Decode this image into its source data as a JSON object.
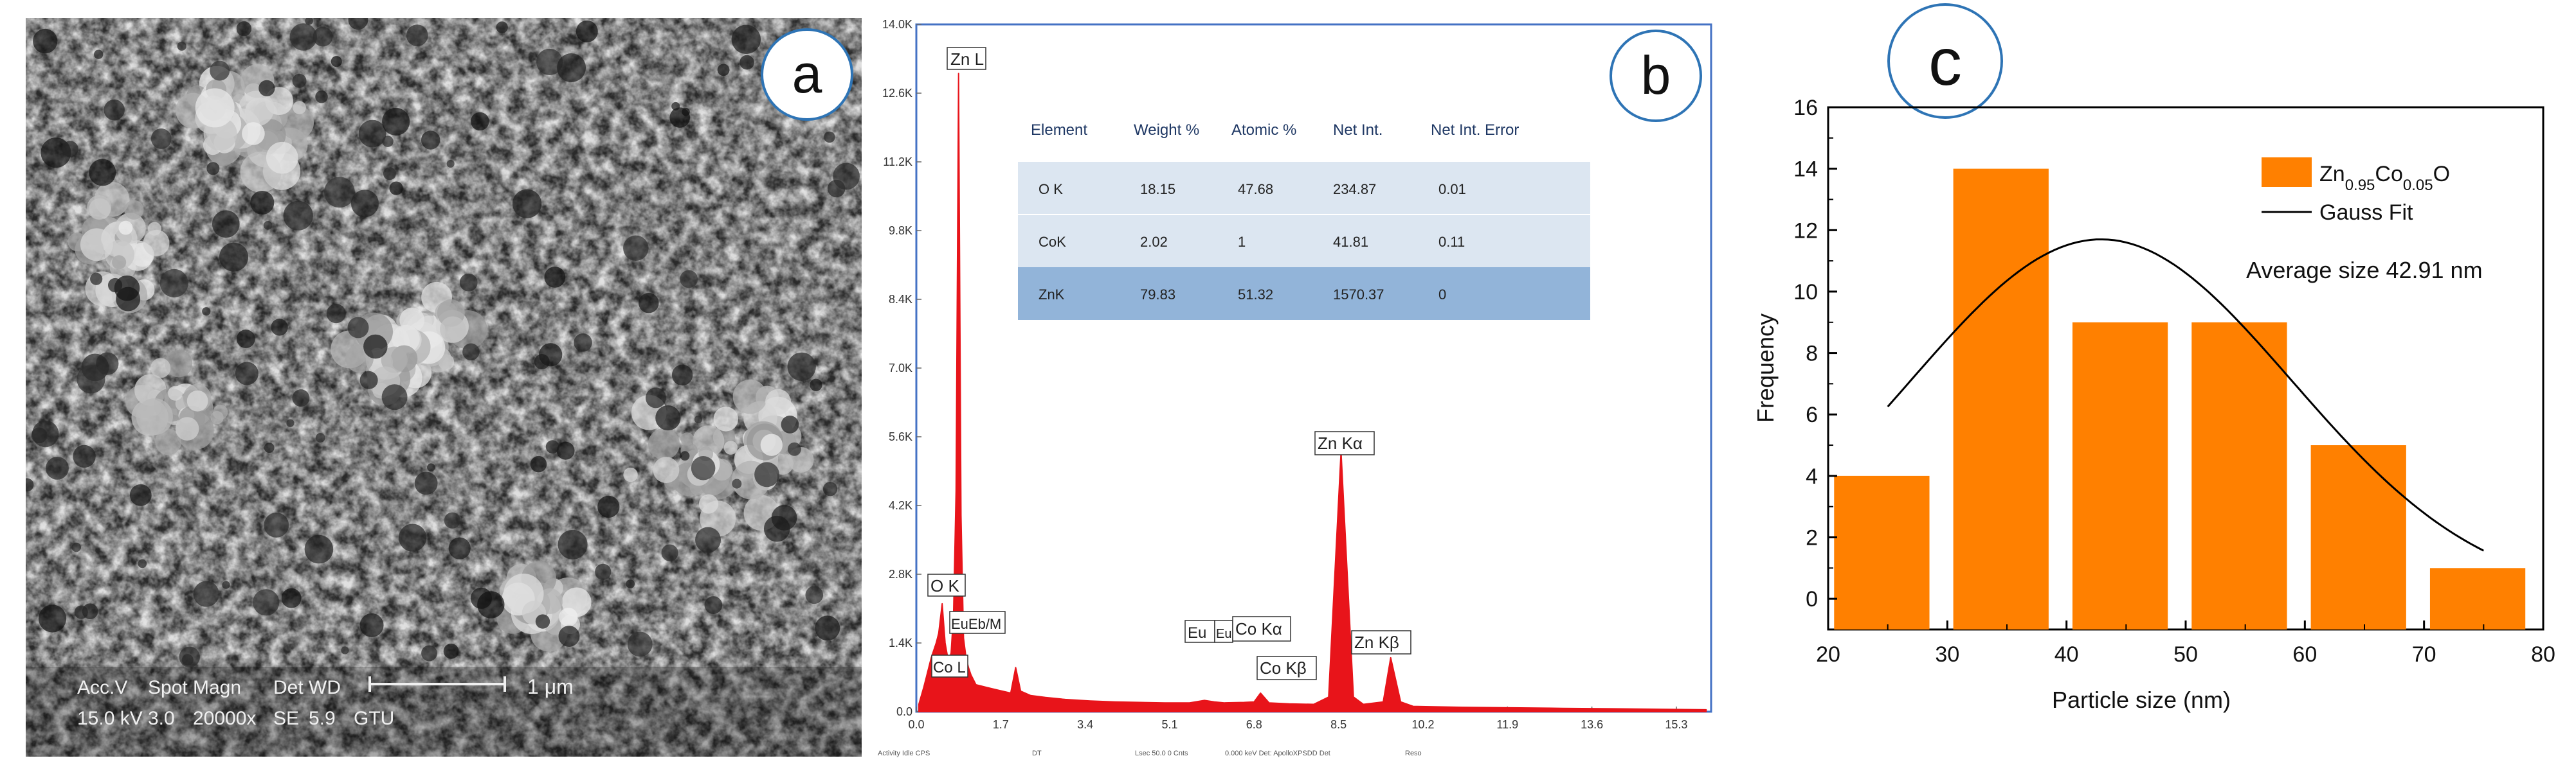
{
  "panel_a": {
    "label": "a",
    "scale_bar": "1 μm",
    "info_row1": [
      "Acc.V",
      "Spot",
      "Magn",
      "Det",
      "WD"
    ],
    "info_row2": [
      "15.0 kV",
      "3.0",
      "20000x",
      "SE",
      "5.9",
      "GTU"
    ]
  },
  "panel_b": {
    "label": "b",
    "table": {
      "headers": [
        "Element",
        "Weight %",
        "Atomic %",
        "Net Int.",
        "Net Int. Error"
      ],
      "rows": [
        [
          "O K",
          "18.15",
          "47.68",
          "234.87",
          "0.01"
        ],
        [
          "CoK",
          "2.02",
          "1",
          "41.81",
          "0.11"
        ],
        [
          "ZnK",
          "79.83",
          "51.32",
          "1570.37",
          "0"
        ]
      ]
    },
    "peak_labels": {
      "zn_l": "Zn L",
      "o_k": "O  K",
      "eu_m": "EuEb/M",
      "co_l": "Co L",
      "eu": "Eu",
      "eu2": "Eu",
      "co_ka": "Co Kα",
      "co_kb": "Co Kβ",
      "zn_ka": "Zn Kα",
      "zn_kb": "Zn Kβ"
    },
    "footer": [
      "Activity Idle CPS",
      "DT",
      "Lsec 50.0  0 Cnts",
      "0.000 keV  Det: ApolloXPSDD Det",
      "Reso"
    ]
  },
  "panel_c": {
    "label": "c"
  },
  "chart_data": [
    {
      "type": "line",
      "title": "",
      "xlabel": "",
      "ylabel": "",
      "xlim": [
        0,
        16.0
      ],
      "ylim": [
        0,
        14000
      ],
      "x_tick_labels": [
        "0.0",
        "1.7",
        "3.4",
        "5.1",
        "6.8",
        "8.5",
        "10.2",
        "11.9",
        "13.6",
        "15.3"
      ],
      "y_tick_labels": [
        "0.0",
        "1.4K",
        "2.8K",
        "4.2K",
        "5.6K",
        "7.0K",
        "8.4K",
        "9.8K",
        "11.2K",
        "12.6K",
        "14.0K"
      ],
      "series": [
        {
          "color": "#e8141a",
          "x": [
            0.05,
            0.15,
            0.2,
            0.3,
            0.4,
            0.45,
            0.52,
            0.58,
            0.65,
            0.7,
            0.75,
            0.8,
            0.85,
            0.9,
            0.95,
            1.0,
            1.05,
            1.1,
            1.2,
            1.4,
            1.6,
            1.9,
            2.0,
            2.1,
            2.3,
            2.6,
            3.0,
            3.5,
            4.0,
            4.5,
            5.0,
            5.5,
            5.8,
            6.0,
            6.2,
            6.6,
            6.8,
            6.93,
            7.1,
            7.5,
            8.0,
            8.3,
            8.55,
            8.8,
            9.0,
            9.4,
            9.55,
            9.75,
            10.0,
            10.5,
            11.0,
            12.0,
            13.0,
            14.0,
            15.0,
            15.9
          ],
          "y": [
            150,
            500,
            700,
            1100,
            1400,
            1600,
            2200,
            1400,
            1000,
            1200,
            2000,
            4500,
            13000,
            4000,
            1500,
            1100,
            900,
            750,
            550,
            500,
            450,
            380,
            900,
            420,
            330,
            290,
            250,
            220,
            200,
            190,
            180,
            180,
            230,
            200,
            180,
            190,
            200,
            380,
            180,
            160,
            150,
            300,
            5300,
            300,
            150,
            200,
            1100,
            200,
            110,
            100,
            90,
            80,
            70,
            60,
            50,
            40
          ]
        }
      ]
    },
    {
      "type": "bar",
      "title": "",
      "xlabel": "Particle size (nm)",
      "ylabel": "Frequency",
      "xlim": [
        20,
        80
      ],
      "ylim": [
        -1,
        16
      ],
      "x_ticks": [
        20,
        30,
        40,
        50,
        60,
        70,
        80
      ],
      "y_ticks": [
        0,
        2,
        4,
        6,
        8,
        10,
        12,
        14,
        16
      ],
      "bars": [
        {
          "x_start": 20.5,
          "x_end": 28.5,
          "value": 4
        },
        {
          "x_start": 30.5,
          "x_end": 38.5,
          "value": 14
        },
        {
          "x_start": 40.5,
          "x_end": 48.5,
          "value": 9
        },
        {
          "x_start": 50.5,
          "x_end": 58.5,
          "value": 9
        },
        {
          "x_start": 60.5,
          "x_end": 68.5,
          "value": 5
        },
        {
          "x_start": 70.5,
          "x_end": 78.5,
          "value": 1
        }
      ],
      "series": [
        {
          "name_html": "Zn<tspan baseline-shift=\"sub\" font-size=\"24\">0.95</tspan>Co<tspan baseline-shift=\"sub\" font-size=\"24\">0.05</tspan>O",
          "name": "Zn0.95Co0.05O",
          "color": "#ff8000"
        },
        {
          "name": "Gauss Fit",
          "color": "#000000"
        }
      ],
      "gauss_fit": {
        "xc": 42.91,
        "w": 32,
        "A": 11.7,
        "x_range": [
          25,
          75
        ]
      },
      "annotation": "Average size 42.91 nm",
      "legend_position": "top-right"
    }
  ]
}
